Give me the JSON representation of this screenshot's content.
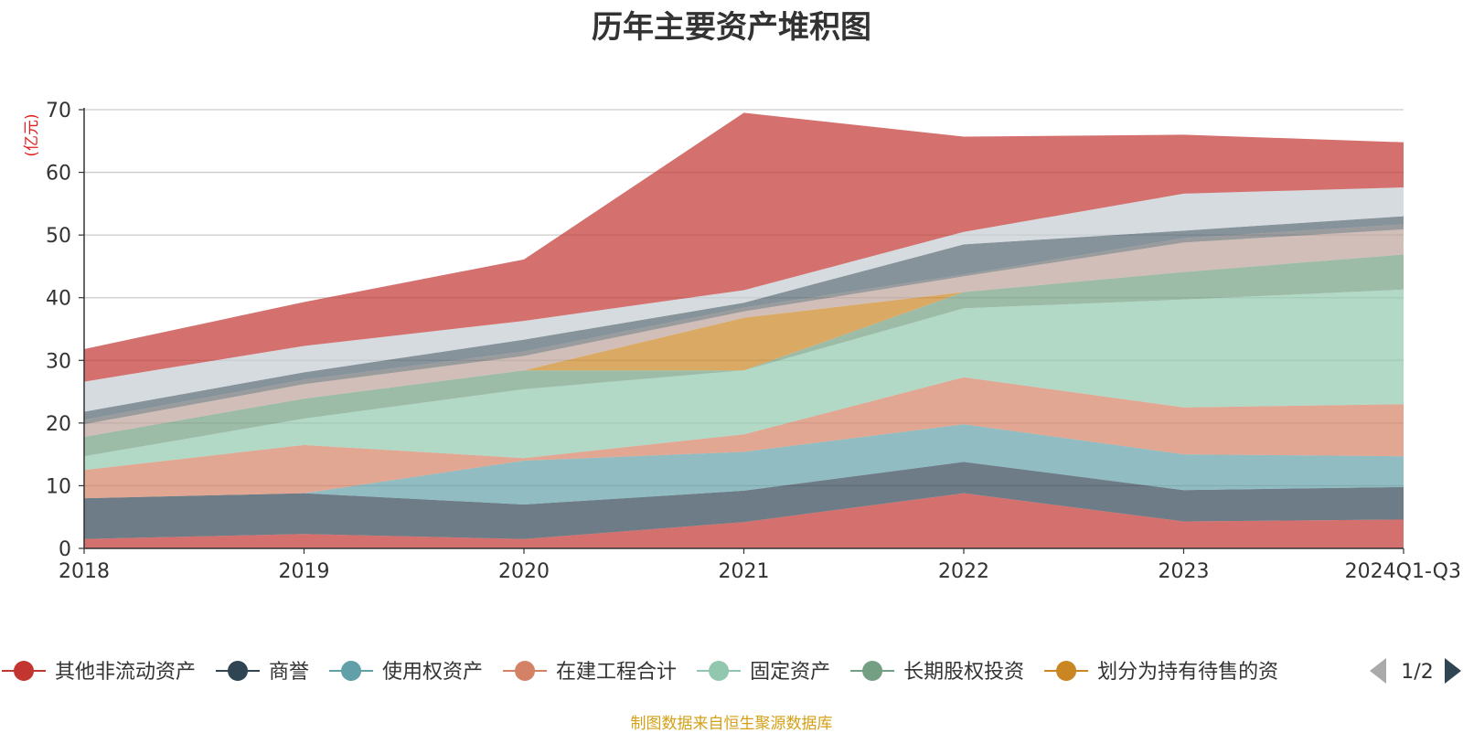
{
  "chart_data": {
    "type": "area",
    "stacked": true,
    "title": "历年主要资产堆积图",
    "unit_label": "(亿元)",
    "x": [
      "2018",
      "2019",
      "2020",
      "2021",
      "2022",
      "2023",
      "2024Q1-Q3"
    ],
    "ylim": [
      0,
      70
    ],
    "yticks": [
      0,
      10,
      20,
      30,
      40,
      50,
      60,
      70
    ],
    "grid": true,
    "legend_position": "bottom",
    "series": [
      {
        "name": "其他非流动资产",
        "color": "#c23531",
        "values": [
          1.5,
          2.3,
          1.5,
          4.2,
          8.8,
          4.3,
          4.6
        ]
      },
      {
        "name": "商誉",
        "color": "#2f4554",
        "values": [
          6.5,
          6.5,
          5.5,
          5.0,
          5.0,
          5.0,
          5.2
        ]
      },
      {
        "name": "使用权资产",
        "color": "#61a0a8",
        "values": [
          0.0,
          0.0,
          7.0,
          6.2,
          6.0,
          5.7,
          4.9
        ]
      },
      {
        "name": "在建工程合计",
        "color": "#d48265",
        "values": [
          4.5,
          7.7,
          0.4,
          2.8,
          7.5,
          7.5,
          8.3
        ]
      },
      {
        "name": "固定资产",
        "color": "#91c7ae",
        "values": [
          2.2,
          4.2,
          11.0,
          10.2,
          11.0,
          17.2,
          18.3
        ]
      },
      {
        "name": "长期股权投资",
        "color": "#749f83",
        "values": [
          3.1,
          3.2,
          3.0,
          0.0,
          2.6,
          4.4,
          5.6
        ]
      },
      {
        "name": "划分为持有待售的资",
        "color": "#ca8622",
        "values": [
          0.0,
          0.0,
          0.0,
          8.4,
          0.0,
          0.0,
          0.0
        ]
      },
      {
        "name": "",
        "color": "#bda29a",
        "values": [
          2.0,
          2.3,
          2.3,
          1.0,
          2.5,
          4.7,
          4.0
        ]
      },
      {
        "name": "",
        "color": "#6e7074",
        "values": [
          0.7,
          0.7,
          0.7,
          0.6,
          0.3,
          0.7,
          0.8
        ]
      },
      {
        "name": "",
        "color": "#546570",
        "values": [
          1.3,
          1.2,
          1.9,
          0.8,
          4.8,
          1.2,
          1.3
        ]
      },
      {
        "name": "",
        "color": "#c4ccd3",
        "values": [
          4.8,
          4.2,
          3.0,
          2.0,
          2.0,
          5.9,
          4.6
        ]
      },
      {
        "name": "",
        "color": "#c23531",
        "values": [
          5.2,
          7.0,
          9.8,
          28.3,
          15.2,
          9.4,
          7.2
        ]
      }
    ],
    "legend_visible_count": 7
  },
  "legend": {
    "page": "1/2"
  },
  "source_note": "制图数据来自恒生聚源数据库"
}
